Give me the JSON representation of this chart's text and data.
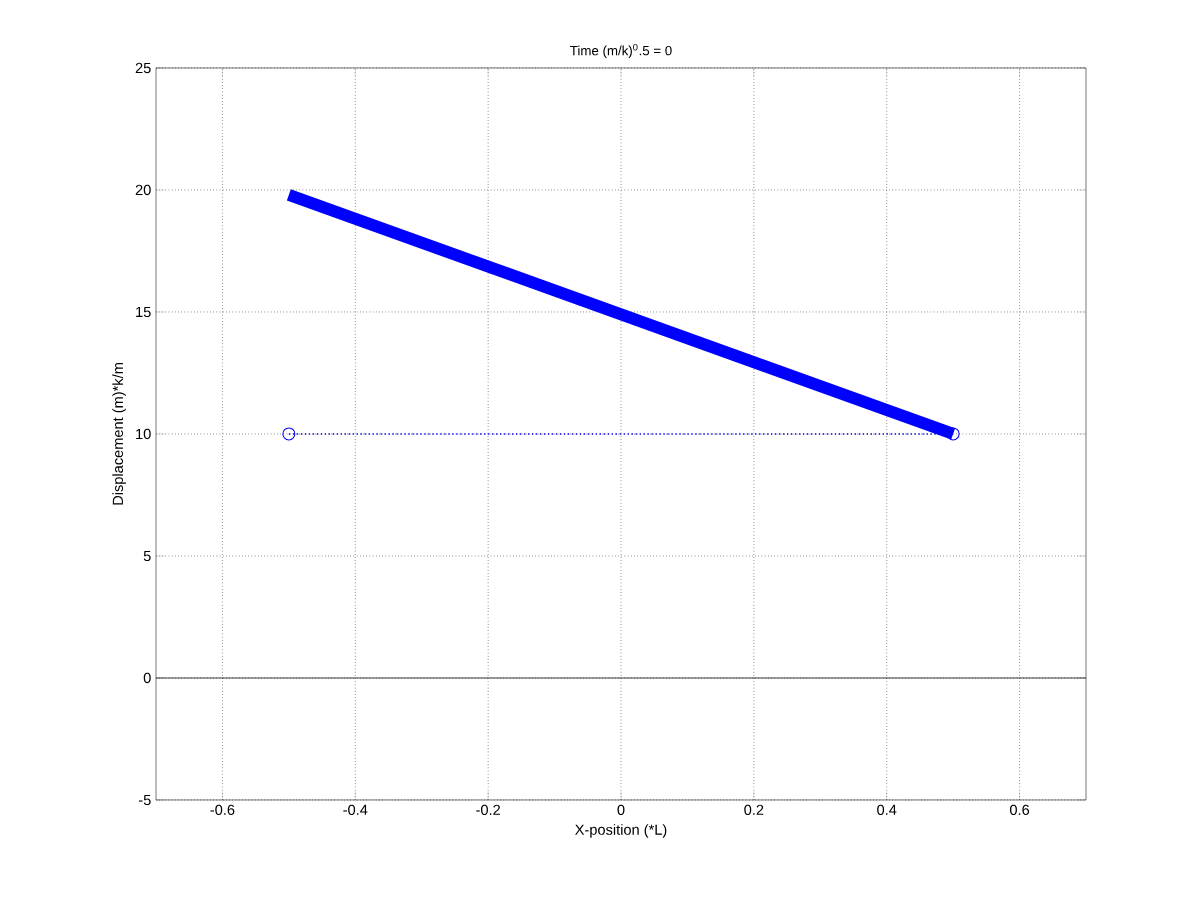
{
  "chart_data": {
    "type": "line",
    "title": "Time (m/k)$^{0}$.5 = 0",
    "xlabel": "X-position (*L)",
    "ylabel": "Displacement (m)*k/m",
    "x": [
      -0.5,
      0.5
    ],
    "series": [
      {
        "color": "#0000ff",
        "values": [
          19.8,
          10
        ]
      },
      {
        "color": "#0000ff",
        "values": [
          10,
          10
        ],
        "line_style": "dotted",
        "marker": "circle"
      }
    ],
    "xlim": [
      -0.7,
      0.7
    ],
    "ylim": [
      -5,
      25
    ],
    "xticks": [
      -0.6,
      -0.4,
      -0.2,
      0,
      0.2,
      0.4,
      0.6
    ],
    "yticks": [
      -5,
      0,
      5,
      10,
      15,
      20,
      25
    ],
    "ref_lines": [
      {
        "axis": "y",
        "value": 0,
        "color": "#000000",
        "line_style": "solid"
      }
    ],
    "grid": true
  }
}
